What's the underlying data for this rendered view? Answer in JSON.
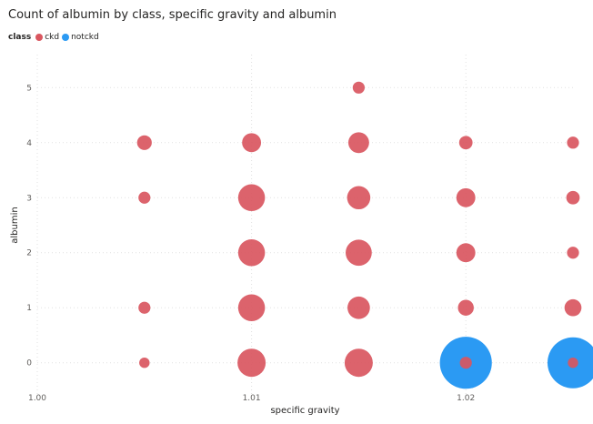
{
  "chart_data": {
    "type": "scatter",
    "title": "Count of albumin by class, specific gravity and albumin",
    "xlabel": "specific gravity",
    "ylabel": "albumin",
    "xlim": [
      1.0,
      1.025
    ],
    "ylim": [
      -0.6,
      5.6
    ],
    "x_ticks": [
      "1.00",
      "1.01",
      "1.02"
    ],
    "x_tick_values": [
      1.0,
      1.01,
      1.02
    ],
    "y_ticks": [
      "0",
      "1",
      "2",
      "3",
      "4",
      "5"
    ],
    "y_tick_values": [
      0,
      1,
      2,
      3,
      4,
      5
    ],
    "grid": true,
    "legend": {
      "title": "class",
      "placement": "top-left"
    },
    "size_encoding": "count",
    "series": [
      {
        "name": "notckd",
        "color": "#2b9af3",
        "points": [
          {
            "x": 1.02,
            "y": 0,
            "count": 75
          },
          {
            "x": 1.025,
            "y": 0,
            "count": 72
          }
        ]
      },
      {
        "name": "ckd",
        "color": "#d9565f",
        "points": [
          {
            "x": 1.005,
            "y": 0,
            "count": 3
          },
          {
            "x": 1.01,
            "y": 0,
            "count": 22
          },
          {
            "x": 1.015,
            "y": 0,
            "count": 22
          },
          {
            "x": 1.02,
            "y": 0,
            "count": 4
          },
          {
            "x": 1.025,
            "y": 0,
            "count": 3
          },
          {
            "x": 1.005,
            "y": 1,
            "count": 4
          },
          {
            "x": 1.01,
            "y": 1,
            "count": 20
          },
          {
            "x": 1.015,
            "y": 1,
            "count": 14
          },
          {
            "x": 1.02,
            "y": 1,
            "count": 7
          },
          {
            "x": 1.025,
            "y": 1,
            "count": 8
          },
          {
            "x": 1.01,
            "y": 2,
            "count": 20
          },
          {
            "x": 1.015,
            "y": 2,
            "count": 19
          },
          {
            "x": 1.02,
            "y": 2,
            "count": 10
          },
          {
            "x": 1.025,
            "y": 2,
            "count": 4
          },
          {
            "x": 1.005,
            "y": 3,
            "count": 4
          },
          {
            "x": 1.01,
            "y": 3,
            "count": 20
          },
          {
            "x": 1.015,
            "y": 3,
            "count": 15
          },
          {
            "x": 1.02,
            "y": 3,
            "count": 10
          },
          {
            "x": 1.025,
            "y": 3,
            "count": 5
          },
          {
            "x": 1.005,
            "y": 4,
            "count": 6
          },
          {
            "x": 1.01,
            "y": 4,
            "count": 10
          },
          {
            "x": 1.015,
            "y": 4,
            "count": 12
          },
          {
            "x": 1.02,
            "y": 4,
            "count": 5
          },
          {
            "x": 1.025,
            "y": 4,
            "count": 4
          },
          {
            "x": 1.015,
            "y": 5,
            "count": 4
          }
        ]
      }
    ]
  }
}
